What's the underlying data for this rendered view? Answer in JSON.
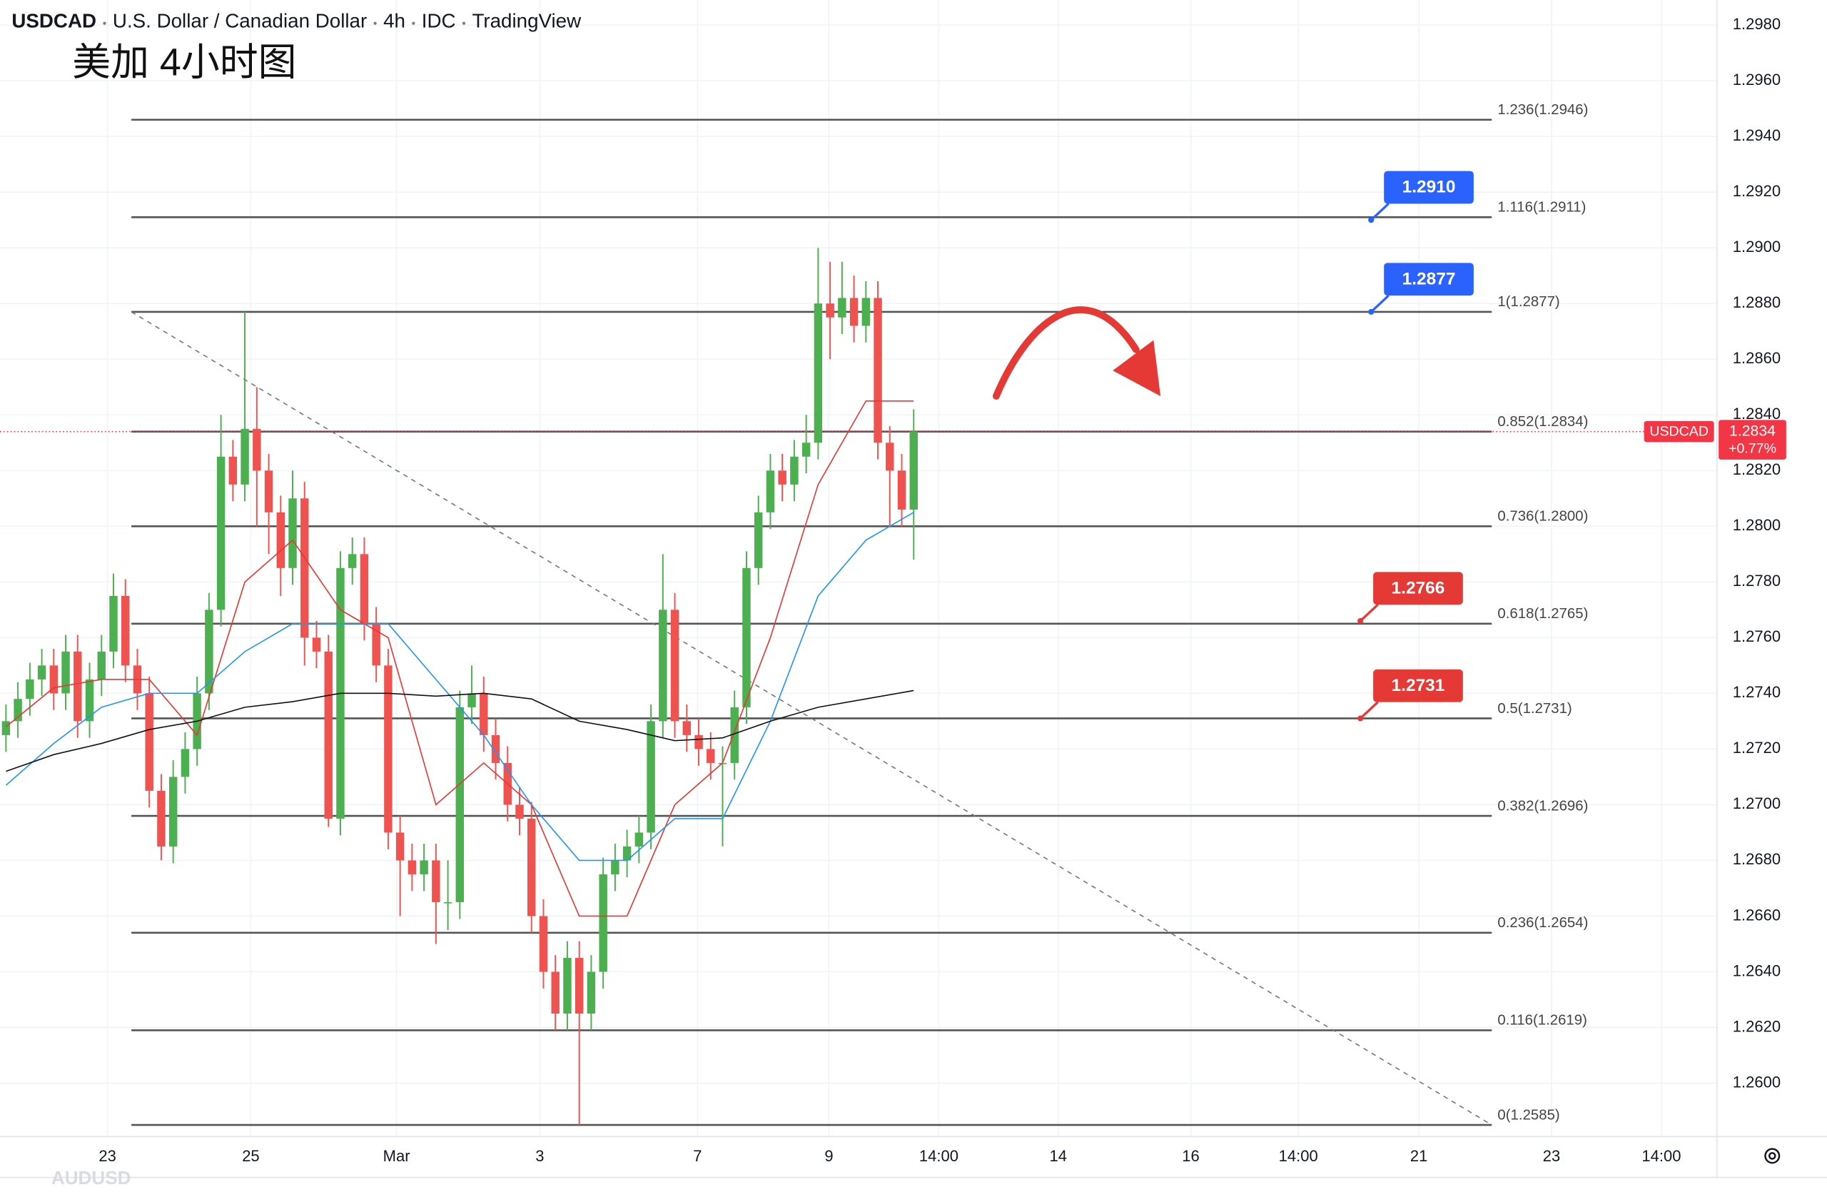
{
  "chart_data": {
    "type": "candlestick",
    "title_parts": [
      "USDCAD",
      "U.S. Dollar / Canadian Dollar",
      "4h",
      "IDC",
      "TradingView"
    ],
    "subtitle": "美加 4小时图",
    "watermark": "AUDUSD",
    "up_color": "#4caf50",
    "down_color": "#ef5350",
    "grid": true,
    "xlim": [
      -0.5,
      143.2
    ],
    "ylim": [
      1.2581,
      1.2989
    ],
    "xticks": [
      {
        "value": 8.5,
        "label": "23"
      },
      {
        "value": 20.5,
        "label": "25"
      },
      {
        "value": 32.7,
        "label": "Mar"
      },
      {
        "value": 44.7,
        "label": "3"
      },
      {
        "value": 57.9,
        "label": "7"
      },
      {
        "value": 68.9,
        "label": "9"
      },
      {
        "value": 78.1,
        "label": "14:00"
      },
      {
        "value": 88.1,
        "label": "14"
      },
      {
        "value": 99.2,
        "label": "16"
      },
      {
        "value": 108.2,
        "label": "14:00"
      },
      {
        "value": 118.3,
        "label": "21"
      },
      {
        "value": 129.4,
        "label": "23"
      },
      {
        "value": 138.6,
        "label": "14:00"
      }
    ],
    "yticks": [
      {
        "value": 1.26,
        "label": "1.2600"
      },
      {
        "value": 1.262,
        "label": "1.2620"
      },
      {
        "value": 1.264,
        "label": "1.2640"
      },
      {
        "value": 1.266,
        "label": "1.2660"
      },
      {
        "value": 1.268,
        "label": "1.2680"
      },
      {
        "value": 1.27,
        "label": "1.2700"
      },
      {
        "value": 1.272,
        "label": "1.2720"
      },
      {
        "value": 1.274,
        "label": "1.2740"
      },
      {
        "value": 1.276,
        "label": "1.2760"
      },
      {
        "value": 1.278,
        "label": "1.2780"
      },
      {
        "value": 1.28,
        "label": "1.2800"
      },
      {
        "value": 1.282,
        "label": "1.2820"
      },
      {
        "value": 1.284,
        "label": "1.2840"
      },
      {
        "value": 1.286,
        "label": "1.2860"
      },
      {
        "value": 1.288,
        "label": "1.2880"
      },
      {
        "value": 1.29,
        "label": "1.2900"
      },
      {
        "value": 1.292,
        "label": "1.2920"
      },
      {
        "value": 1.294,
        "label": "1.2940"
      },
      {
        "value": 1.296,
        "label": "1.2960"
      },
      {
        "value": 1.298,
        "label": "1.2980"
      }
    ],
    "candles": [
      [
        1.2725,
        1.2736,
        1.2719,
        1.273
      ],
      [
        1.273,
        1.2744,
        1.2724,
        1.2738
      ],
      [
        1.2738,
        1.2751,
        1.2732,
        1.2745
      ],
      [
        1.2745,
        1.2756,
        1.2739,
        1.275
      ],
      [
        1.275,
        1.2756,
        1.2734,
        1.274
      ],
      [
        1.274,
        1.2761,
        1.2734,
        1.2755
      ],
      [
        1.2755,
        1.2761,
        1.2724,
        1.273
      ],
      [
        1.273,
        1.2751,
        1.2724,
        1.2745
      ],
      [
        1.2745,
        1.2761,
        1.2739,
        1.2755
      ],
      [
        1.2755,
        1.2783,
        1.2749,
        1.2775
      ],
      [
        1.2775,
        1.2781,
        1.2744,
        1.275
      ],
      [
        1.275,
        1.2756,
        1.2734,
        1.274
      ],
      [
        1.274,
        1.2746,
        1.2699,
        1.2705
      ],
      [
        1.2705,
        1.2711,
        1.268,
        1.2685
      ],
      [
        1.2685,
        1.2716,
        1.2679,
        1.271
      ],
      [
        1.271,
        1.2726,
        1.2704,
        1.272
      ],
      [
        1.272,
        1.2746,
        1.2714,
        1.274
      ],
      [
        1.274,
        1.2776,
        1.2734,
        1.277
      ],
      [
        1.277,
        1.284,
        1.2764,
        1.2825
      ],
      [
        1.2825,
        1.2831,
        1.2809,
        1.2815
      ],
      [
        1.2815,
        1.2877,
        1.2809,
        1.2835
      ],
      [
        1.2835,
        1.285,
        1.28,
        1.282
      ],
      [
        1.282,
        1.2826,
        1.279,
        1.2805
      ],
      [
        1.2805,
        1.2811,
        1.2775,
        1.2785
      ],
      [
        1.2785,
        1.282,
        1.2779,
        1.281
      ],
      [
        1.281,
        1.2816,
        1.275,
        1.276
      ],
      [
        1.276,
        1.2766,
        1.2749,
        1.2755
      ],
      [
        1.2755,
        1.2761,
        1.2692,
        1.2695
      ],
      [
        1.2695,
        1.2791,
        1.2689,
        1.2785
      ],
      [
        1.2785,
        1.2796,
        1.2779,
        1.279
      ],
      [
        1.279,
        1.2796,
        1.2759,
        1.2765
      ],
      [
        1.2765,
        1.2771,
        1.2744,
        1.275
      ],
      [
        1.275,
        1.2756,
        1.2684,
        1.269
      ],
      [
        1.269,
        1.2696,
        1.266,
        1.268
      ],
      [
        1.268,
        1.2686,
        1.2669,
        1.2675
      ],
      [
        1.2675,
        1.2686,
        1.2669,
        1.268
      ],
      [
        1.268,
        1.2686,
        1.265,
        1.2665
      ],
      [
        1.2665,
        1.268,
        1.2655,
        1.2665
      ],
      [
        1.2665,
        1.2741,
        1.2659,
        1.2735
      ],
      [
        1.2735,
        1.275,
        1.2729,
        1.274
      ],
      [
        1.274,
        1.2746,
        1.2719,
        1.2725
      ],
      [
        1.2725,
        1.2731,
        1.2709,
        1.2715
      ],
      [
        1.2715,
        1.2721,
        1.2694,
        1.27
      ],
      [
        1.27,
        1.2706,
        1.2689,
        1.2695
      ],
      [
        1.2695,
        1.2701,
        1.2654,
        1.266
      ],
      [
        1.266,
        1.2666,
        1.2634,
        1.264
      ],
      [
        1.264,
        1.2646,
        1.2619,
        1.2625
      ],
      [
        1.2625,
        1.2651,
        1.2619,
        1.2645
      ],
      [
        1.2645,
        1.2651,
        1.2585,
        1.2625
      ],
      [
        1.2625,
        1.2646,
        1.2619,
        1.264
      ],
      [
        1.264,
        1.2681,
        1.2634,
        1.2675
      ],
      [
        1.2675,
        1.2686,
        1.2669,
        1.268
      ],
      [
        1.268,
        1.2691,
        1.2674,
        1.2685
      ],
      [
        1.2685,
        1.2696,
        1.2679,
        1.269
      ],
      [
        1.269,
        1.2736,
        1.2684,
        1.273
      ],
      [
        1.273,
        1.279,
        1.2724,
        1.277
      ],
      [
        1.277,
        1.2776,
        1.2724,
        1.273
      ],
      [
        1.273,
        1.2736,
        1.2719,
        1.2725
      ],
      [
        1.2725,
        1.2731,
        1.2714,
        1.272
      ],
      [
        1.272,
        1.2726,
        1.2709,
        1.2715
      ],
      [
        1.2715,
        1.2721,
        1.2685,
        1.2715
      ],
      [
        1.2715,
        1.2741,
        1.2709,
        1.2735
      ],
      [
        1.2735,
        1.2791,
        1.2729,
        1.2785
      ],
      [
        1.2785,
        1.2811,
        1.2779,
        1.2805
      ],
      [
        1.2805,
        1.2826,
        1.2799,
        1.282
      ],
      [
        1.282,
        1.2826,
        1.2809,
        1.2815
      ],
      [
        1.2815,
        1.2831,
        1.2809,
        1.2825
      ],
      [
        1.2825,
        1.284,
        1.2819,
        1.283
      ],
      [
        1.283,
        1.29,
        1.2824,
        1.288
      ],
      [
        1.288,
        1.2895,
        1.286,
        1.2875
      ],
      [
        1.2875,
        1.2895,
        1.2869,
        1.2882
      ],
      [
        1.2882,
        1.289,
        1.2866,
        1.2872
      ],
      [
        1.2872,
        1.2888,
        1.2866,
        1.2882
      ],
      [
        1.2882,
        1.2888,
        1.2824,
        1.283
      ],
      [
        1.283,
        1.2836,
        1.28,
        1.282
      ],
      [
        1.282,
        1.2826,
        1.28,
        1.2806
      ],
      [
        1.2806,
        1.2842,
        1.2788,
        1.2834
      ]
    ],
    "series": [
      {
        "color": "#e53935",
        "x": [
          0,
          4,
          8,
          12,
          16,
          20,
          24,
          28,
          32,
          36,
          40,
          44,
          48,
          52,
          56,
          60,
          64,
          68,
          72,
          76
        ],
        "values": [
          1.2728,
          1.2742,
          1.2745,
          1.2745,
          1.2725,
          1.278,
          1.2795,
          1.277,
          1.276,
          1.27,
          1.2715,
          1.27,
          1.266,
          1.266,
          1.27,
          1.2715,
          1.276,
          1.2815,
          1.2845,
          1.2845
        ]
      },
      {
        "color": "#2196f3",
        "x": [
          0,
          4,
          8,
          12,
          16,
          20,
          24,
          28,
          32,
          36,
          40,
          44,
          48,
          52,
          56,
          60,
          64,
          68,
          72,
          76
        ],
        "values": [
          1.2707,
          1.2722,
          1.2735,
          1.274,
          1.274,
          1.2755,
          1.2765,
          1.2765,
          1.2765,
          1.2745,
          1.2725,
          1.27,
          1.268,
          1.268,
          1.2695,
          1.2695,
          1.273,
          1.2775,
          1.2795,
          1.2805
        ]
      },
      {
        "color": "#111111",
        "x": [
          0,
          4,
          8,
          12,
          16,
          20,
          24,
          28,
          32,
          36,
          40,
          44,
          48,
          52,
          56,
          60,
          64,
          68,
          72,
          76
        ],
        "values": [
          1.2712,
          1.2718,
          1.2722,
          1.2727,
          1.273,
          1.2735,
          1.2737,
          1.274,
          1.274,
          1.2739,
          1.274,
          1.2738,
          1.273,
          1.2727,
          1.2723,
          1.2724,
          1.273,
          1.2735,
          1.2738,
          1.2741
        ]
      }
    ],
    "fib_x": [
      10.5,
      124.4
    ],
    "fib_levels": [
      {
        "value": 1.2946,
        "label": "1.236(1.2946)"
      },
      {
        "value": 1.2911,
        "label": "1.116(1.2911)"
      },
      {
        "value": 1.2877,
        "label": "1(1.2877)"
      },
      {
        "value": 1.2834,
        "label": "0.852(1.2834)"
      },
      {
        "value": 1.28,
        "label": "0.736(1.2800)"
      },
      {
        "value": 1.2765,
        "label": "0.618(1.2765)"
      },
      {
        "value": 1.2731,
        "label": "0.5(1.2731)"
      },
      {
        "value": 1.2696,
        "label": "0.382(1.2696)"
      },
      {
        "value": 1.2654,
        "label": "0.236(1.2654)"
      },
      {
        "value": 1.2619,
        "label": "0.116(1.2619)"
      },
      {
        "value": 1.2585,
        "label": "0(1.2585)"
      }
    ],
    "trend_line": {
      "x": [
        10.5,
        124.4
      ],
      "values": [
        1.2877,
        1.2585
      ]
    },
    "callouts": [
      {
        "value": 1.291,
        "label": "1.2910",
        "x": 114.3,
        "color": "#2962ff"
      },
      {
        "value": 1.2877,
        "label": "1.2877",
        "x": 114.3,
        "color": "#2962ff"
      },
      {
        "value": 1.2766,
        "label": "1.2766",
        "x": 113.4,
        "color": "#e53935"
      },
      {
        "value": 1.2731,
        "label": "1.2731",
        "x": 113.4,
        "color": "#e53935"
      }
    ],
    "last_price": {
      "name": "USDCAD",
      "value": 1.2834,
      "change": "+0.77%",
      "color": "#f23645"
    }
  }
}
